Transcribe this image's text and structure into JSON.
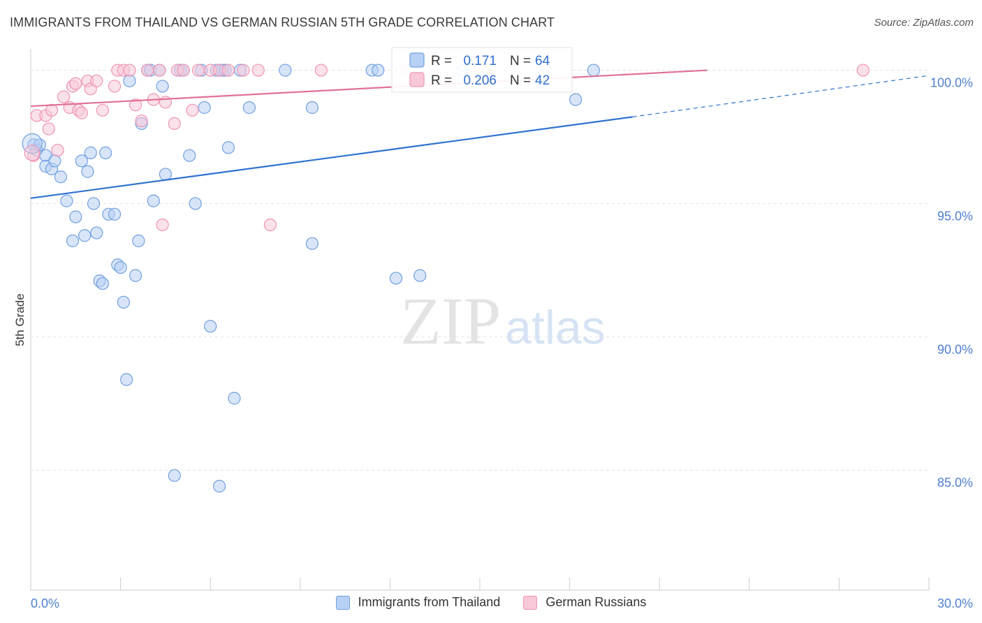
{
  "header": {
    "title": "IMMIGRANTS FROM THAILAND VS GERMAN RUSSIAN 5TH GRADE CORRELATION CHART",
    "source": "Source: ZipAtlas.com"
  },
  "watermark": {
    "zip": "ZIP",
    "atlas": "atlas"
  },
  "chart_data": {
    "type": "scatter",
    "title": "IMMIGRANTS FROM THAILAND VS GERMAN RUSSIAN 5TH GRADE CORRELATION CHART",
    "xlabel": "",
    "ylabel": "5th Grade",
    "xlim": [
      0,
      30
    ],
    "ylim": [
      80.5,
      100.8
    ],
    "x_tick_labels": [
      "0.0%",
      "30.0%"
    ],
    "y_ticks": [
      100,
      95,
      90,
      85
    ],
    "y_tick_labels": [
      "100.0%",
      "95.0%",
      "90.0%",
      "85.0%"
    ],
    "grid": true,
    "legend_position": "bottom",
    "stats_box": [
      {
        "r_label": "R =",
        "r_value": "0.171",
        "n_label": "N =",
        "n_value": "64"
      },
      {
        "r_label": "R =",
        "r_value": "0.206",
        "n_label": "N =",
        "n_value": "42"
      }
    ],
    "series": [
      {
        "name": "Immigrants from Thailand",
        "color": "#6f9fe0",
        "fill": "#b8d0f4",
        "trend_color": "#2f72d0",
        "trend": {
          "x_start": 0,
          "y_start": 95.2,
          "x_solid_end": 20.1,
          "y_solid_end": 98.25,
          "x_end": 30,
          "y_end": 99.8
        },
        "points": [
          [
            0.1,
            97.2
          ],
          [
            0.2,
            97.0
          ],
          [
            0.3,
            97.2
          ],
          [
            0.5,
            96.8
          ],
          [
            0.5,
            96.4
          ],
          [
            0.7,
            96.3
          ],
          [
            0.8,
            96.6
          ],
          [
            1.0,
            96.0
          ],
          [
            1.2,
            95.1
          ],
          [
            1.4,
            93.6
          ],
          [
            1.5,
            94.5
          ],
          [
            1.7,
            96.6
          ],
          [
            1.8,
            93.8
          ],
          [
            1.9,
            96.2
          ],
          [
            2.0,
            96.9
          ],
          [
            2.1,
            95.0
          ],
          [
            2.2,
            93.9
          ],
          [
            2.3,
            92.1
          ],
          [
            2.4,
            92.0
          ],
          [
            2.5,
            96.9
          ],
          [
            2.6,
            94.6
          ],
          [
            2.8,
            94.6
          ],
          [
            2.9,
            92.7
          ],
          [
            3.0,
            92.6
          ],
          [
            3.1,
            91.3
          ],
          [
            3.2,
            88.4
          ],
          [
            3.3,
            99.6
          ],
          [
            3.5,
            92.3
          ],
          [
            3.6,
            93.6
          ],
          [
            3.7,
            98.0
          ],
          [
            3.9,
            100.0
          ],
          [
            4.0,
            100.0
          ],
          [
            4.1,
            95.1
          ],
          [
            4.3,
            100.0
          ],
          [
            4.4,
            99.4
          ],
          [
            4.5,
            96.1
          ],
          [
            4.8,
            84.8
          ],
          [
            5.0,
            100.0
          ],
          [
            5.1,
            100.0
          ],
          [
            5.3,
            96.8
          ],
          [
            5.5,
            95.0
          ],
          [
            5.7,
            100.0
          ],
          [
            5.8,
            98.6
          ],
          [
            6.0,
            90.4
          ],
          [
            6.2,
            100.0
          ],
          [
            6.3,
            84.4
          ],
          [
            6.4,
            100.0
          ],
          [
            6.5,
            100.0
          ],
          [
            6.6,
            97.1
          ],
          [
            6.8,
            87.7
          ],
          [
            7.0,
            100.0
          ],
          [
            7.3,
            98.6
          ],
          [
            8.5,
            100.0
          ],
          [
            9.4,
            98.6
          ],
          [
            9.4,
            93.5
          ],
          [
            11.4,
            100.0
          ],
          [
            11.6,
            100.0
          ],
          [
            12.2,
            92.2
          ],
          [
            13.0,
            92.3
          ],
          [
            14.4,
            100.0
          ],
          [
            18.2,
            98.9
          ],
          [
            18.8,
            100.0
          ]
        ]
      },
      {
        "name": "German Russians",
        "color": "#ee94b4",
        "fill": "#f8c8d8",
        "trend_color": "#e07099",
        "trend": {
          "x_start": 0,
          "y_start": 98.65,
          "x_solid_end": 22.6,
          "y_solid_end": 100.0,
          "x_end": 22.6,
          "y_end": 100.0
        },
        "points": [
          [
            0.1,
            96.8
          ],
          [
            0.2,
            98.3
          ],
          [
            0.5,
            98.3
          ],
          [
            0.6,
            97.8
          ],
          [
            0.7,
            98.5
          ],
          [
            0.9,
            97.0
          ],
          [
            1.1,
            99.0
          ],
          [
            1.3,
            98.6
          ],
          [
            1.4,
            99.4
          ],
          [
            1.5,
            99.5
          ],
          [
            1.6,
            98.5
          ],
          [
            1.7,
            98.4
          ],
          [
            1.9,
            99.6
          ],
          [
            2.0,
            99.3
          ],
          [
            2.2,
            99.6
          ],
          [
            2.4,
            98.5
          ],
          [
            2.8,
            99.4
          ],
          [
            2.9,
            100.0
          ],
          [
            3.1,
            100.0
          ],
          [
            3.3,
            100.0
          ],
          [
            3.5,
            98.7
          ],
          [
            3.7,
            98.1
          ],
          [
            3.9,
            100.0
          ],
          [
            4.1,
            98.9
          ],
          [
            4.3,
            100.0
          ],
          [
            4.4,
            94.2
          ],
          [
            4.5,
            98.8
          ],
          [
            4.8,
            98.0
          ],
          [
            4.9,
            100.0
          ],
          [
            5.1,
            100.0
          ],
          [
            5.4,
            98.5
          ],
          [
            5.6,
            100.0
          ],
          [
            6.0,
            100.0
          ],
          [
            6.3,
            100.0
          ],
          [
            6.6,
            100.0
          ],
          [
            7.1,
            100.0
          ],
          [
            7.6,
            100.0
          ],
          [
            8.0,
            94.2
          ],
          [
            9.7,
            100.0
          ],
          [
            12.4,
            100.0
          ],
          [
            27.8,
            100.0
          ]
        ]
      }
    ]
  },
  "legend": {
    "items": [
      {
        "label": "Immigrants from Thailand",
        "color": "#6f9fe0",
        "fill": "#b8d0f4"
      },
      {
        "label": "German Russians",
        "color": "#ee94b4",
        "fill": "#f8c8d8"
      }
    ]
  }
}
